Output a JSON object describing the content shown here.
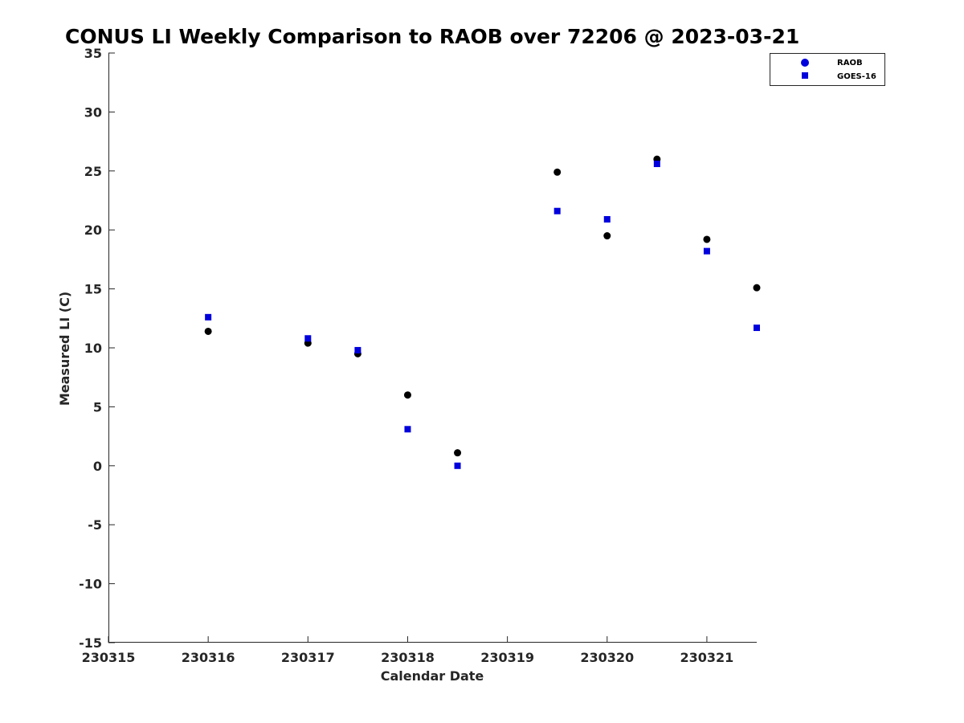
{
  "chart_data": {
    "type": "scatter",
    "title": "CONUS LI Weekly Comparison to RAOB over 72206 @ 2023-03-21",
    "xlabel": "Calendar Date",
    "ylabel": "Measured LI (C)",
    "xlim": [
      230315,
      230321.5
    ],
    "ylim": [
      -15,
      35
    ],
    "x_ticks": [
      230315,
      230316,
      230317,
      230318,
      230319,
      230320,
      230321
    ],
    "x_tick_labels": [
      "230315",
      "230316",
      "230317",
      "230318",
      "230319",
      "230320",
      "230321"
    ],
    "y_ticks": [
      -15,
      -10,
      -5,
      0,
      5,
      10,
      15,
      20,
      25,
      30,
      35
    ],
    "y_tick_labels": [
      "-15",
      "-10",
      "-5",
      "0",
      "5",
      "10",
      "15",
      "20",
      "25",
      "30",
      "35"
    ],
    "grid": false,
    "legend_position": "top-right",
    "series": [
      {
        "name": "RAOB",
        "marker": "circle",
        "color": "#000000",
        "legend_color": "#0000dd",
        "x": [
          230316,
          230317,
          230317.5,
          230318,
          230318.5,
          230319.5,
          230320,
          230320.5,
          230321,
          230321.5
        ],
        "y": [
          11.4,
          10.4,
          9.5,
          6.0,
          1.1,
          24.9,
          19.5,
          26.0,
          19.2,
          15.1
        ]
      },
      {
        "name": "GOES-16",
        "marker": "square",
        "color": "#0000dd",
        "legend_color": "#0000dd",
        "x": [
          230316,
          230317,
          230317.5,
          230318,
          230318.5,
          230319.5,
          230320,
          230320.5,
          230321,
          230321.5
        ],
        "y": [
          12.6,
          10.8,
          9.8,
          3.1,
          0.0,
          21.6,
          20.9,
          25.6,
          18.2,
          11.7
        ]
      }
    ]
  }
}
